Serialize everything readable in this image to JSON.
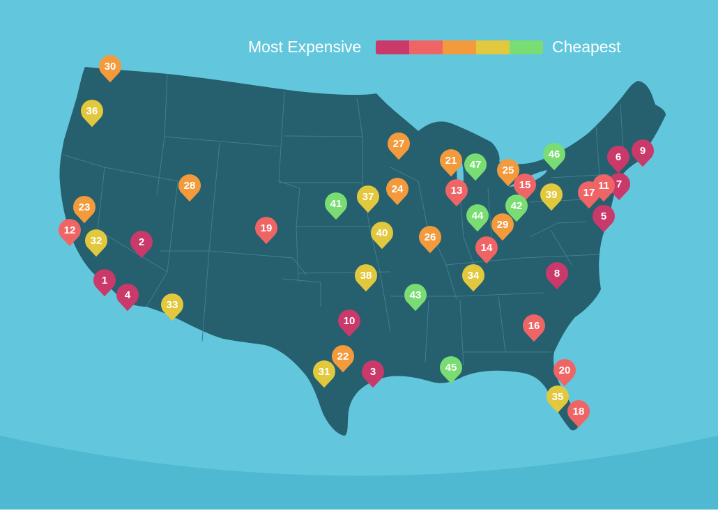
{
  "legend": {
    "left_label": "Most Expensive",
    "right_label": "Cheapest",
    "scale": [
      {
        "tier": 1,
        "color": "#c9396a"
      },
      {
        "tier": 2,
        "color": "#ef6565"
      },
      {
        "tier": 3,
        "color": "#f39a3d"
      },
      {
        "tier": 4,
        "color": "#e2c83d"
      },
      {
        "tier": 5,
        "color": "#79dd73"
      }
    ]
  },
  "colors": {
    "ocean": "#62c7dc",
    "ocean_deep": "#4fb9d2",
    "land": "#265f6e",
    "borders": "#3f8090"
  },
  "markers": [
    {
      "rank": "1",
      "tier": 1
    },
    {
      "rank": "2",
      "tier": 1
    },
    {
      "rank": "3",
      "tier": 1
    },
    {
      "rank": "4",
      "tier": 1
    },
    {
      "rank": "5",
      "tier": 1
    },
    {
      "rank": "6",
      "tier": 1
    },
    {
      "rank": "7",
      "tier": 1
    },
    {
      "rank": "8",
      "tier": 1
    },
    {
      "rank": "9",
      "tier": 1
    },
    {
      "rank": "10",
      "tier": 1
    },
    {
      "rank": "11",
      "tier": 2
    },
    {
      "rank": "12",
      "tier": 2
    },
    {
      "rank": "13",
      "tier": 2
    },
    {
      "rank": "14",
      "tier": 2
    },
    {
      "rank": "15",
      "tier": 2
    },
    {
      "rank": "16",
      "tier": 2
    },
    {
      "rank": "17",
      "tier": 2
    },
    {
      "rank": "18",
      "tier": 2
    },
    {
      "rank": "19",
      "tier": 2
    },
    {
      "rank": "20",
      "tier": 2
    },
    {
      "rank": "21",
      "tier": 3
    },
    {
      "rank": "22",
      "tier": 3
    },
    {
      "rank": "23",
      "tier": 3
    },
    {
      "rank": "24",
      "tier": 3
    },
    {
      "rank": "25",
      "tier": 3
    },
    {
      "rank": "26",
      "tier": 3
    },
    {
      "rank": "27",
      "tier": 3
    },
    {
      "rank": "28",
      "tier": 3
    },
    {
      "rank": "29",
      "tier": 3
    },
    {
      "rank": "30",
      "tier": 3
    },
    {
      "rank": "31",
      "tier": 4
    },
    {
      "rank": "32",
      "tier": 4
    },
    {
      "rank": "33",
      "tier": 4
    },
    {
      "rank": "34",
      "tier": 4
    },
    {
      "rank": "35",
      "tier": 4
    },
    {
      "rank": "36",
      "tier": 4
    },
    {
      "rank": "37",
      "tier": 4
    },
    {
      "rank": "38",
      "tier": 4
    },
    {
      "rank": "39",
      "tier": 4
    },
    {
      "rank": "40",
      "tier": 4
    },
    {
      "rank": "41",
      "tier": 5
    },
    {
      "rank": "42",
      "tier": 5
    },
    {
      "rank": "43",
      "tier": 5
    },
    {
      "rank": "44",
      "tier": 5
    },
    {
      "rank": "45",
      "tier": 5
    },
    {
      "rank": "46",
      "tier": 5
    },
    {
      "rank": "47",
      "tier": 5
    }
  ]
}
